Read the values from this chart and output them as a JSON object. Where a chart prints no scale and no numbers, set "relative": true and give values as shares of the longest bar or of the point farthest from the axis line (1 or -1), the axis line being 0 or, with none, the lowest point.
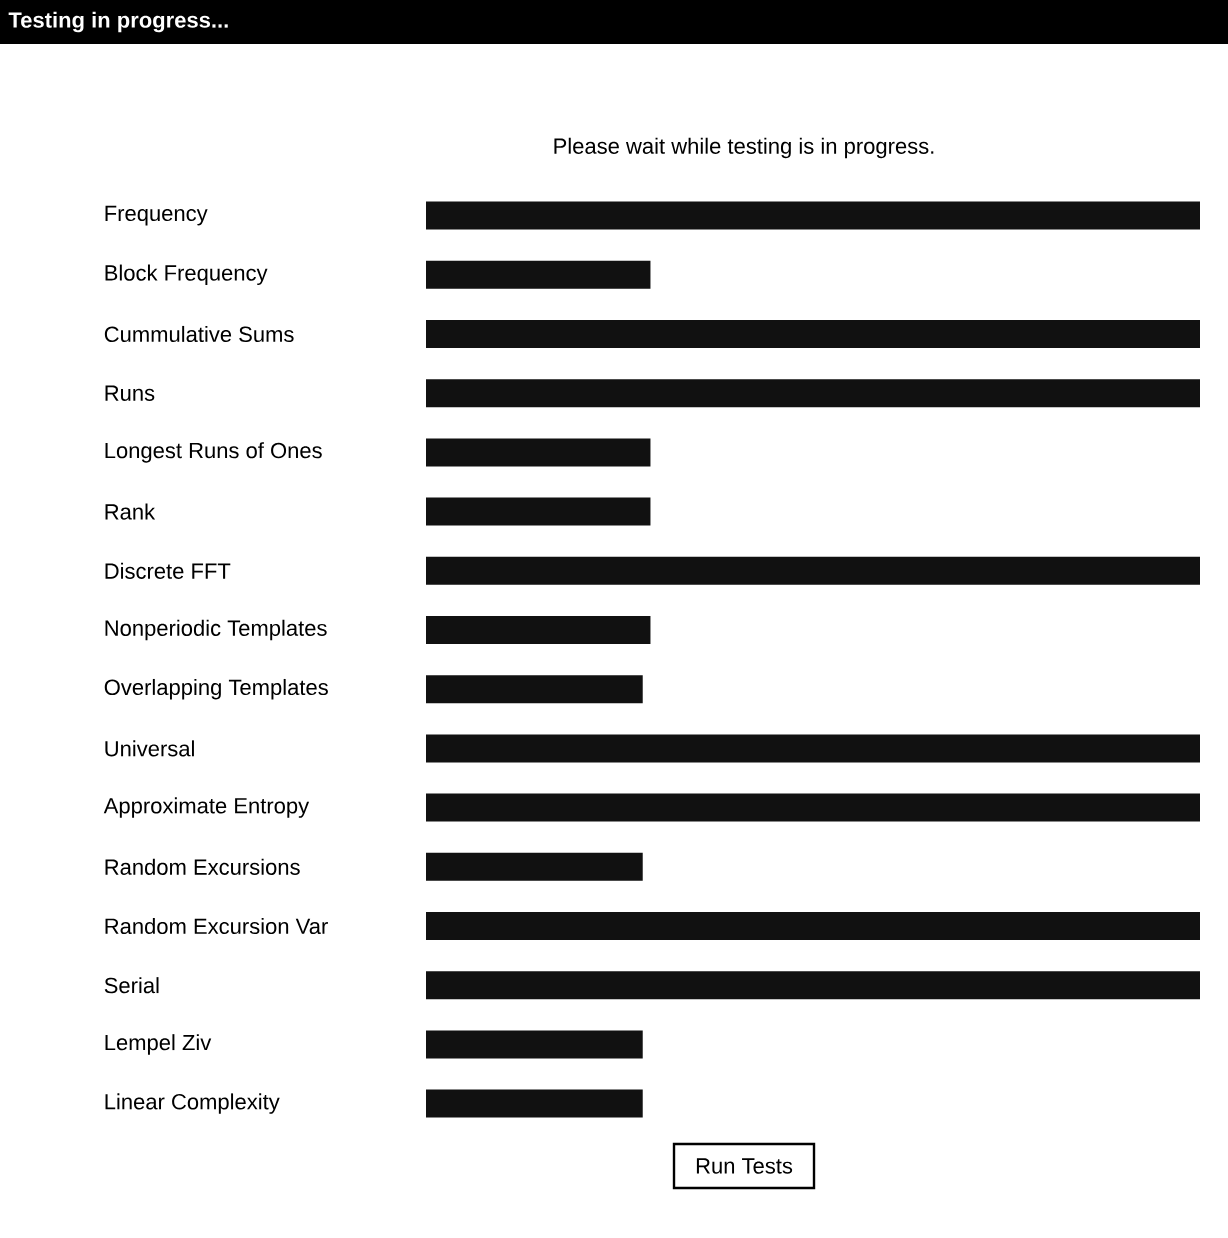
{
  "chart_data": {
    "type": "bar",
    "orientation": "horizontal",
    "relative": true,
    "title": "Testing in progress...",
    "subtitle": "Please wait while testing is in progress.",
    "annotations": [
      "Run Tests"
    ],
    "categories": [
      "Frequency",
      "Block Frequency",
      "Cummulative Sums",
      "Runs",
      "Longest Runs of Ones",
      "Rank",
      "Discrete FFT",
      "Nonperiodic Templates",
      "Overlapping Templates",
      "Universal",
      "Approximate Entropy",
      "Random Excursions",
      "Random Excursion Var",
      "Serial",
      "Lempel Ziv",
      "Linear Complexity"
    ],
    "values": [
      1,
      0.29,
      1,
      1,
      0.29,
      0.29,
      1,
      0.29,
      0.28,
      1,
      1,
      0.28,
      1,
      1,
      0.28,
      0.28
    ],
    "color": "#111111"
  }
}
